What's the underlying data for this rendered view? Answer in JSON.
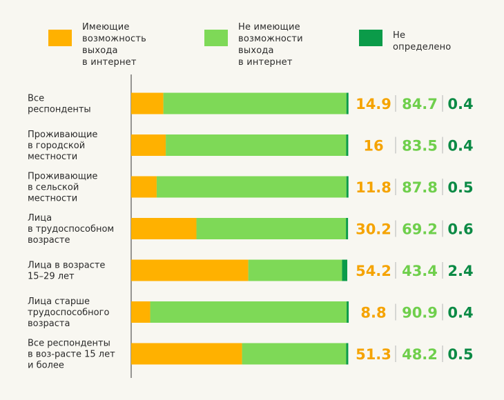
{
  "legend": [
    {
      "label": "Имеющие\nвозможность выхода\nв интернет",
      "color": "#ffb100"
    },
    {
      "label": "Не имеющие\nвозможности выхода\nв интернет",
      "color": "#7ed957"
    },
    {
      "label": "Не определено",
      "color": "#0b9b49"
    }
  ],
  "chart_data": {
    "type": "bar",
    "orientation": "horizontal",
    "stacked": true,
    "xlim": [
      0,
      100
    ],
    "categories": [
      "Все\nреспонденты",
      "Проживающие\nв городской\nместности",
      "Проживающие\nв сельской\nместности",
      "Лица\nв трудоспособном\nвозрасте",
      "Лица в возрасте\n15–29 лет",
      "Лица старше\nтрудоспособного\nвозраста",
      "Все респонденты\nв воз-расте 15 лет\nи более"
    ],
    "series": [
      {
        "name": "Имеющие возможность выхода в интернет",
        "color": "#ffb100",
        "label_color": "#f5a300",
        "values": [
          14.9,
          16,
          11.8,
          30.2,
          54.2,
          8.8,
          51.3
        ],
        "labels": [
          "14.9",
          "16",
          "11.8",
          "30.2",
          "54.2",
          "8.8",
          "51.3"
        ]
      },
      {
        "name": "Не имеющие возможности выхода в интернет",
        "color": "#7ed957",
        "label_color": "#6fcf4c",
        "values": [
          84.7,
          83.5,
          87.8,
          69.2,
          43.4,
          90.9,
          48.2
        ],
        "labels": [
          "84.7",
          "83.5",
          "87.8",
          "69.2",
          "43.4",
          "90.9",
          "48.2"
        ]
      },
      {
        "name": "Не определено",
        "color": "#0b9b49",
        "label_color": "#0b8a45",
        "values": [
          0.4,
          0.4,
          0.5,
          0.6,
          2.4,
          0.4,
          0.5
        ],
        "labels": [
          "0.4",
          "0.4",
          "0.5",
          "0.6",
          "2.4",
          "0.4",
          "0.5"
        ]
      }
    ]
  }
}
